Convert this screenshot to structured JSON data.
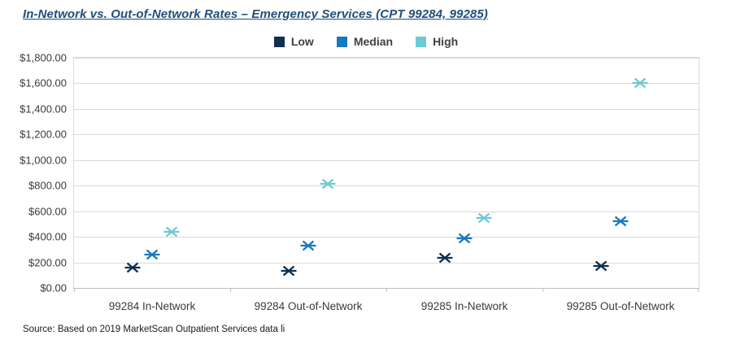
{
  "chart_data": {
    "type": "scatter",
    "title": "In-Network vs. Out-of-Network Rates – Emergency Services (CPT 99284, 99285)",
    "categories": [
      "99284 In-Network",
      "99284 Out-of-Network",
      "99285 In-Network",
      "99285 Out-of-Network"
    ],
    "series": [
      {
        "name": "Low",
        "color": "#0e3050",
        "values": [
          160,
          135,
          235,
          170
        ]
      },
      {
        "name": "Median",
        "color": "#1779be",
        "values": [
          260,
          330,
          385,
          520
        ]
      },
      {
        "name": "High",
        "color": "#6ecbd3",
        "values": [
          440,
          815,
          545,
          1600
        ]
      }
    ],
    "ylim": [
      0,
      1800
    ],
    "ytick_step": 200,
    "ytick_labels": [
      "$0.00",
      "$200.00",
      "$400.00",
      "$600.00",
      "$800.00",
      "$1,000.00",
      "$1,200.00",
      "$1,400.00",
      "$1,600.00",
      "$1,800.00"
    ],
    "xlabel": "",
    "ylabel": "",
    "grid": true,
    "legend_position": "top",
    "marker_style": "x-with-horizontal-dash"
  },
  "source": "Source: Based on 2019 MarketScan Outpatient Services data li"
}
